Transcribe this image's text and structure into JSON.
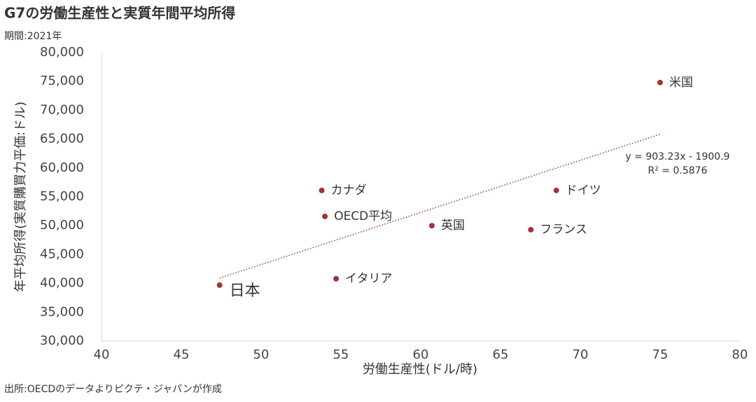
{
  "chart_data": {
    "type": "scatter",
    "title": "G7の労働生産性と実質年間平均所得",
    "subtitle": "期間:2021年",
    "x_label": "労働生産性(ドル/時)",
    "y_label": "年平均所得(実質購買力平価:ドル)",
    "source": "出所:OECDのデータよりピクテ・ジャパンが作成",
    "series": [
      {
        "name": "G7",
        "color": "#a0353a",
        "labels": [
          "米国",
          "カナダ",
          "OECD平均",
          "英国",
          "ドイツ",
          "フランス",
          "イタリア",
          "日本"
        ],
        "label_colors": [
          "#333333",
          "#333333",
          "#333333",
          "#333333",
          "#333333",
          "#333333",
          "#333333",
          "#c00000"
        ],
        "x": [
          75.0,
          53.8,
          54.0,
          60.7,
          68.5,
          66.9,
          54.7,
          47.4
        ],
        "values": [
          74800,
          56100,
          51600,
          50000,
          56100,
          49300,
          40800,
          39700
        ]
      }
    ],
    "trendline": {
      "slope": 903.23,
      "intercept": -1900.9,
      "color": "#a0353a",
      "equation": "y = 903.23x - 1900.9",
      "r2": "R² = 0.5876"
    },
    "xlim": [
      40,
      80
    ],
    "xticks": [
      40,
      45,
      50,
      55,
      60,
      65,
      70,
      75,
      80
    ],
    "ylim": [
      30000,
      80000
    ],
    "yticks": [
      {
        "value": 30000,
        "label": "30,000"
      },
      {
        "value": 35000,
        "label": "35,000"
      },
      {
        "value": 40000,
        "label": "40,000"
      },
      {
        "value": 45000,
        "label": "45,000"
      },
      {
        "value": 50000,
        "label": "50,000"
      },
      {
        "value": 55000,
        "label": "55,000"
      },
      {
        "value": 60000,
        "label": "60,000"
      },
      {
        "value": 65000,
        "label": "65,000"
      },
      {
        "value": 70000,
        "label": "70,000"
      },
      {
        "value": 75000,
        "label": "75,000"
      },
      {
        "value": 80000,
        "label": "80,000"
      }
    ],
    "grid": false
  }
}
